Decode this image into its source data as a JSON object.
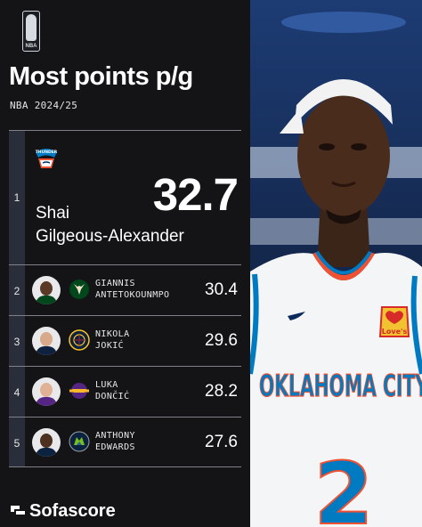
{
  "header": {
    "league_logo_icon": "nba-logo-icon",
    "league_logo_text": "NBA",
    "title": "Most points p/g",
    "subtitle": "NBA 2024/25"
  },
  "leader": {
    "rank": "1",
    "team_icon": "thunder-logo-icon",
    "team_logo_text": "THUNDER",
    "value": "32.7",
    "name_line1": "Shai",
    "name_line2": "Gilgeous-Alexander"
  },
  "others": [
    {
      "rank": "2",
      "first": "GIANNIS",
      "last": "ANTETOKOUNMPO",
      "value": "30.4",
      "team_icon": "bucks-logo-icon",
      "team_color": "#00471b"
    },
    {
      "rank": "3",
      "first": "NIKOLA",
      "last": "JOKIĆ",
      "value": "29.6",
      "team_icon": "nuggets-logo-icon",
      "team_color": "#0e2240"
    },
    {
      "rank": "4",
      "first": "LUKA",
      "last": "DONČIĆ",
      "value": "28.2",
      "team_icon": "lakers-logo-icon",
      "team_color": "#552583"
    },
    {
      "rank": "5",
      "first": "ANTHONY",
      "last": "EDWARDS",
      "value": "27.6",
      "team_icon": "timberwolves-logo-icon",
      "team_color": "#0c2340"
    }
  ],
  "photo": {
    "jersey_text": "OKLAHOMA CITY",
    "jersey_number": "2",
    "patch_text": "Love's"
  },
  "footer": {
    "brand": "Sofascore",
    "brand_icon": "sofascore-logo-icon"
  }
}
